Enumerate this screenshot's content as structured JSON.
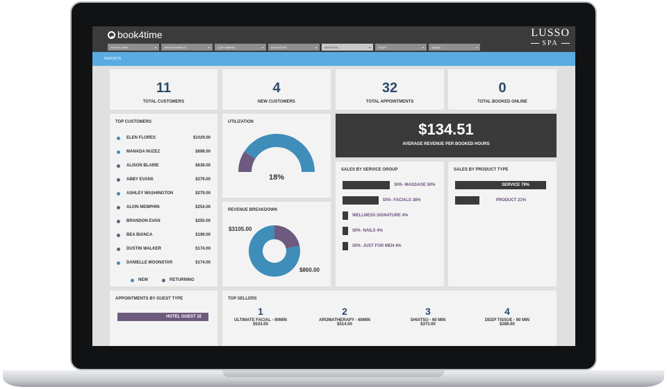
{
  "app": {
    "logo_text": "book4time",
    "brand_line1": "LUSSO",
    "brand_line2": "SPA"
  },
  "nav": {
    "tabs": [
      {
        "label": "FRONT DESK",
        "active": false
      },
      {
        "label": "APPOINTMENTS",
        "active": false
      },
      {
        "label": "CUSTOMERS",
        "active": false
      },
      {
        "label": "INVENTORY",
        "active": false
      },
      {
        "label": "REPORTS",
        "active": true
      },
      {
        "label": "STAFF",
        "active": false
      },
      {
        "label": "ADMIN",
        "active": false
      }
    ],
    "caret": "▾"
  },
  "breadcrumb": "REPORTS",
  "kpis": [
    {
      "value": "11",
      "label": "TOTAL CUSTOMERS"
    },
    {
      "value": "4",
      "label": "NEW CUSTOMERS"
    },
    {
      "value": "32",
      "label": "TOTAL APPOINTMENTS"
    },
    {
      "value": "0",
      "label": "TOTAL BOOKED ONLINE"
    }
  ],
  "top_customers": {
    "title": "TOP CUSTOMERS",
    "rows": [
      {
        "name": "ELEN FLORES",
        "amount": "$1029.00",
        "type": "new"
      },
      {
        "name": "MANADA NUZEZ",
        "amount": "$698.00",
        "type": "new"
      },
      {
        "name": "ALISON BLAIRE",
        "amount": "$638.00",
        "type": "returning"
      },
      {
        "name": "ABBY EVANS",
        "amount": "$279.00",
        "type": "returning"
      },
      {
        "name": "ASHLEY WASHINGTON",
        "amount": "$279.00",
        "type": "new"
      },
      {
        "name": "ALVIN MEMPHIN",
        "amount": "$254.00",
        "type": "returning"
      },
      {
        "name": "BRANDON EVAN",
        "amount": "$250.00",
        "type": "returning"
      },
      {
        "name": "BEA BIANCA",
        "amount": "$199.00",
        "type": "returning"
      },
      {
        "name": "DUSTIN WALKER",
        "amount": "$174.00",
        "type": "returning"
      },
      {
        "name": "DANIELLE MOONSTAR",
        "amount": "$174.00",
        "type": "new"
      }
    ],
    "legend_new": "NEW",
    "legend_returning": "RETURNING"
  },
  "colors": {
    "new": "#3f8db9",
    "returning": "#6d5a7e",
    "bar": "#3a3a3a",
    "accent_text": "#6b4f7e"
  },
  "utilization": {
    "title": "UTILIZATION",
    "value_label": "18%",
    "fraction": 0.18
  },
  "revenue_breakdown": {
    "title": "REVENUE BREAKDOWN",
    "new_label": "$3105.00",
    "returning_label": "$860.00",
    "new_value": 3105.0,
    "returning_value": 860.0
  },
  "avg_revenue": {
    "value": "$134.51",
    "label": "AVERAGE REVENUE PER BOOKED HOURS"
  },
  "sales_by_service_group": {
    "title": "SALES BY SERVICE GROUP",
    "items": [
      {
        "label": "SPA- MASSAGE 50%",
        "percent": 50
      },
      {
        "label": "SPA- FACIALS 38%",
        "percent": 38
      },
      {
        "label": "WELLNESS SIGNATURE 4%",
        "percent": 4
      },
      {
        "label": "SPA- NAILS 4%",
        "percent": 4
      },
      {
        "label": "SPA- JUST FOR MEN 4%",
        "percent": 4
      }
    ]
  },
  "sales_by_product_type": {
    "title": "SALES BY PRODUCT TYPE",
    "items": [
      {
        "label": "SERVICE 79%",
        "percent": 79
      },
      {
        "label": "PRODUCT 21%",
        "percent": 21
      }
    ]
  },
  "appointments_by_guest_type": {
    "title": "APPOINTMENTS BY GUEST TYPE",
    "items": [
      {
        "label": "HOTEL GUEST 32",
        "value": 32
      }
    ]
  },
  "top_sellers": {
    "title": "TOP SELLERS",
    "items": [
      {
        "rank": "1",
        "name": "ULTIMATE FACIAL - 90MIN",
        "amount": "$533.00"
      },
      {
        "rank": "2",
        "name": "AROMATHERAPY - 60MIN",
        "amount": "$514.00"
      },
      {
        "rank": "3",
        "name": "SHIATSU - 60 MIN",
        "amount": "$373.00"
      },
      {
        "rank": "4",
        "name": "DEEP TISSUE - 90 MIN",
        "amount": "$289.00"
      }
    ]
  }
}
